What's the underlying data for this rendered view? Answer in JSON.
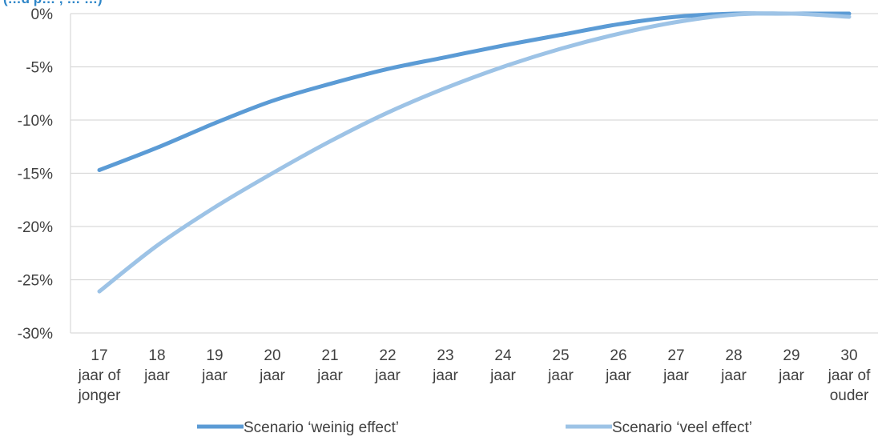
{
  "chart_data": {
    "type": "line",
    "title_visible_fragment": "(…d p…   , …   …)",
    "categories": [
      [
        "17",
        "jaar of",
        "jonger"
      ],
      [
        "18",
        "jaar"
      ],
      [
        "19",
        "jaar"
      ],
      [
        "20",
        "jaar"
      ],
      [
        "21",
        "jaar"
      ],
      [
        "22",
        "jaar"
      ],
      [
        "23",
        "jaar"
      ],
      [
        "24",
        "jaar"
      ],
      [
        "25",
        "jaar"
      ],
      [
        "26",
        "jaar"
      ],
      [
        "27",
        "jaar"
      ],
      [
        "28",
        "jaar"
      ],
      [
        "29",
        "jaar"
      ],
      [
        "30",
        "jaar of",
        "ouder"
      ]
    ],
    "y_ticks": [
      "0%",
      "-5%",
      "-10%",
      "-15%",
      "-20%",
      "-25%",
      "-30%"
    ],
    "ylim": [
      -30,
      0
    ],
    "grid": true,
    "legend_position": "bottom",
    "series": [
      {
        "name": "Scenario ‘weinig effect’",
        "color": "#5B9BD5",
        "values": [
          -14.7,
          -12.6,
          -10.3,
          -8.2,
          -6.6,
          -5.2,
          -4.1,
          -3.0,
          -2.0,
          -1.0,
          -0.3,
          0.0,
          0.0,
          0.0
        ]
      },
      {
        "name": "Scenario ‘veel effect’",
        "color": "#9DC3E6",
        "values": [
          -26.1,
          -21.8,
          -18.2,
          -15.0,
          -12.0,
          -9.3,
          -7.0,
          -5.0,
          -3.3,
          -1.9,
          -0.8,
          -0.1,
          0.0,
          -0.3
        ]
      }
    ]
  }
}
